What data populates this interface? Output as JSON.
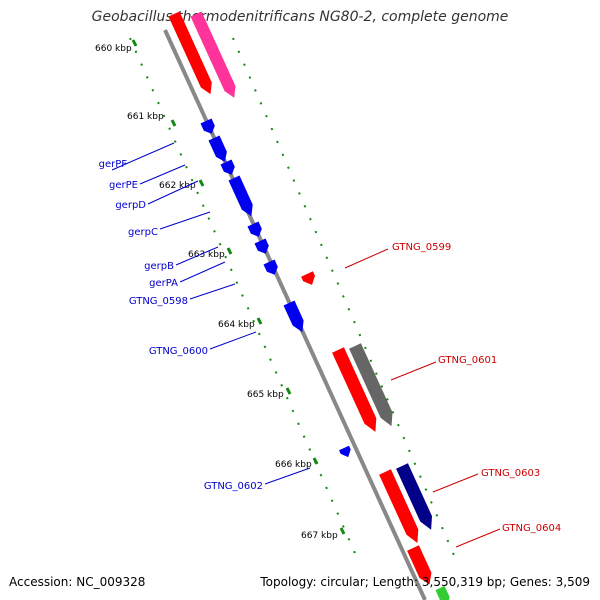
{
  "header": {
    "title": "Geobacillus thermodenitrificans NG80-2, complete genome"
  },
  "footer": {
    "accession": "Accession: NC_009328",
    "summary": "Topology: circular; Length: 3,550,319 bp; Genes: 3,509"
  },
  "colors": {
    "left_label": "#0000cc",
    "right_label": "#cc0000",
    "ruler_dot": "#118811",
    "backbone": "#888888",
    "red": "#ff0000",
    "blue": "#0000ee",
    "pink": "#ff3399",
    "gray": "#666666",
    "navy": "#000088",
    "green": "#33cc33"
  },
  "ruler": [
    {
      "label": "660 kbp"
    },
    {
      "label": "661 kbp"
    },
    {
      "label": "662 kbp"
    },
    {
      "label": "663 kbp"
    },
    {
      "label": "664 kbp"
    },
    {
      "label": "665 kbp"
    },
    {
      "label": "666 kbp"
    },
    {
      "label": "667 kbp"
    }
  ],
  "left_genes": [
    {
      "name": "gerPF"
    },
    {
      "name": "gerPE"
    },
    {
      "name": "gerpD"
    },
    {
      "name": "gerpC"
    },
    {
      "name": "gerpB"
    },
    {
      "name": "gerPA"
    },
    {
      "name": "GTNG_0598"
    },
    {
      "name": "GTNG_0600"
    },
    {
      "name": "GTNG_0602"
    }
  ],
  "right_genes": [
    {
      "name": "GTNG_0599"
    },
    {
      "name": "GTNG_0601"
    },
    {
      "name": "GTNG_0603"
    },
    {
      "name": "GTNG_0604"
    }
  ]
}
